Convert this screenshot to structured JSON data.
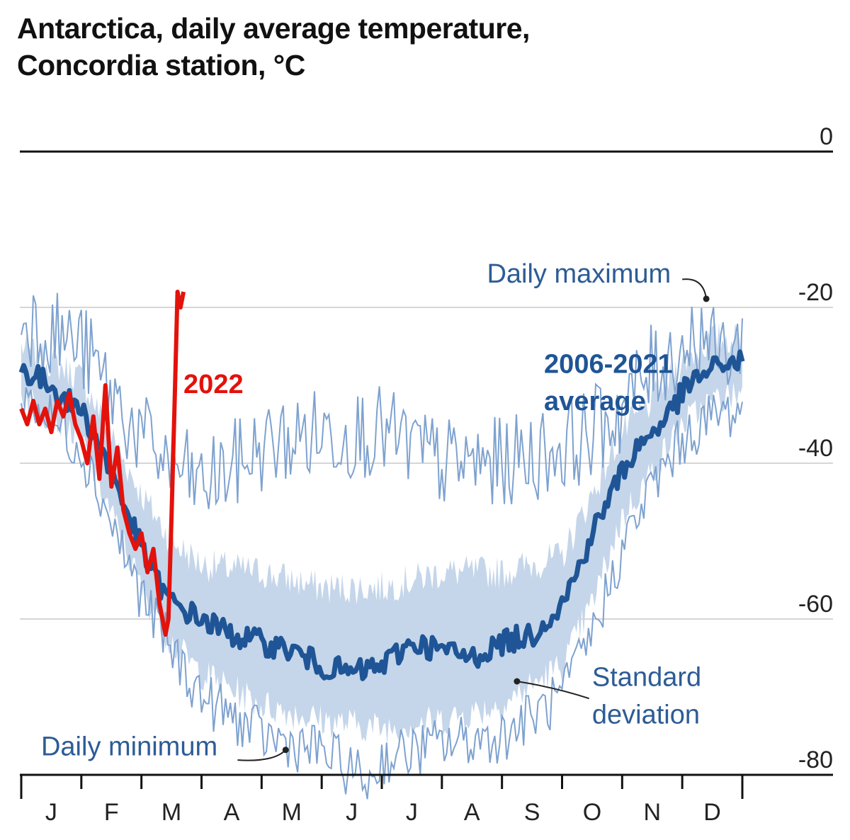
{
  "title_line1": "Antarctica, daily average temperature,",
  "title_line2": "Concordia station, °C",
  "colors": {
    "avg": "#1f5596",
    "band": "#c5d6ea",
    "minmax": "#7ea2cf",
    "y2022": "#e3120b",
    "annotation": "#2d5c96",
    "grid": "#d6d6d6",
    "axis": "#111111"
  },
  "chart_data": {
    "type": "line",
    "title": "Antarctica, daily average temperature, Concordia station, °C",
    "xlabel": "",
    "ylabel": "°C",
    "ylim": [
      -80,
      0
    ],
    "xlim": [
      0,
      12
    ],
    "y_ticks": [
      0,
      -20,
      -40,
      -60,
      -80
    ],
    "y_tick_labels": [
      "0",
      "-20",
      "-40",
      "-60",
      "-80"
    ],
    "months": [
      "J",
      "F",
      "M",
      "A",
      "M",
      "J",
      "J",
      "A",
      "S",
      "O",
      "N",
      "D"
    ],
    "grid": true,
    "legend": "annotations",
    "annotations": {
      "daily_max": "Daily maximum",
      "daily_min": "Daily minimum",
      "std_line1": "Standard",
      "std_line2": "deviation",
      "avg_line1": "2006-2021",
      "avg_line2": "average",
      "y2022": "2022"
    },
    "series": [
      {
        "name": "2006-2021 average",
        "x": [
          0,
          0.25,
          0.5,
          0.75,
          1.0,
          1.25,
          1.5,
          1.75,
          2.0,
          2.25,
          2.5,
          2.75,
          3.0,
          3.5,
          4.0,
          4.5,
          5.0,
          5.5,
          6.0,
          6.5,
          7.0,
          7.5,
          8.0,
          8.5,
          9.0,
          9.25,
          9.5,
          9.75,
          10.0,
          10.25,
          10.5,
          10.75,
          11.0,
          11.25,
          11.5,
          11.75,
          12.0
        ],
        "y": [
          -28,
          -29,
          -30,
          -32,
          -33,
          -37,
          -41,
          -46,
          -51,
          -55,
          -58,
          -59,
          -60,
          -62,
          -63,
          -64,
          -66,
          -67,
          -66,
          -63,
          -64,
          -65,
          -63,
          -62,
          -58,
          -54,
          -49,
          -45,
          -41,
          -38,
          -36,
          -34,
          -31,
          -29,
          -28,
          -27,
          -27
        ]
      },
      {
        "name": "Standard deviation upper",
        "x": [
          0,
          1.0,
          2.0,
          2.5,
          3.0,
          4.0,
          5.0,
          6.0,
          7.0,
          8.0,
          9.0,
          9.5,
          10.0,
          10.5,
          11.0,
          11.5,
          12.0
        ],
        "y": [
          -25,
          -29,
          -44,
          -50,
          -53,
          -54,
          -56,
          -56,
          -54,
          -54,
          -52,
          -44,
          -36,
          -32,
          -27,
          -24,
          -24
        ]
      },
      {
        "name": "Standard deviation lower",
        "x": [
          0,
          1.0,
          2.0,
          2.5,
          3.0,
          4.0,
          5.0,
          6.0,
          7.0,
          8.0,
          9.0,
          9.5,
          10.0,
          10.5,
          11.0,
          11.5,
          12.0
        ],
        "y": [
          -31,
          -37,
          -56,
          -63,
          -67,
          -71,
          -73,
          -74,
          -73,
          -71,
          -66,
          -58,
          -47,
          -41,
          -35,
          -32,
          -31
        ]
      },
      {
        "name": "Daily maximum",
        "x": [
          0,
          1.0,
          2.0,
          2.5,
          3.0,
          4.0,
          5.0,
          6.0,
          7.0,
          8.0,
          9.0,
          9.5,
          10.0,
          10.5,
          11.0,
          11.4,
          11.5,
          12.0
        ],
        "y": [
          -21,
          -25,
          -37,
          -40,
          -43,
          -38,
          -36,
          -36,
          -40,
          -40,
          -38,
          -36,
          -33,
          -28,
          -25,
          -23,
          -26,
          -25
        ]
      },
      {
        "name": "Daily minimum",
        "x": [
          0,
          1.0,
          2.0,
          2.5,
          3.0,
          4.0,
          5.0,
          5.8,
          6.0,
          7.0,
          8.0,
          9.0,
          9.5,
          10.0,
          10.5,
          11.0,
          11.5,
          12.0
        ],
        "y": [
          -31,
          -38,
          -57,
          -64,
          -70,
          -75,
          -77,
          -81,
          -78,
          -76,
          -75,
          -70,
          -62,
          -51,
          -43,
          -37,
          -34,
          -33
        ]
      },
      {
        "name": "2022",
        "x": [
          0,
          0.1,
          0.2,
          0.3,
          0.4,
          0.5,
          0.6,
          0.7,
          0.8,
          0.9,
          1.0,
          1.1,
          1.2,
          1.3,
          1.4,
          1.5,
          1.6,
          1.7,
          1.8,
          1.9,
          2.0,
          2.1,
          2.2,
          2.3,
          2.4,
          2.45,
          2.5,
          2.55,
          2.6,
          2.65,
          2.7
        ],
        "y": [
          -33,
          -35,
          -32,
          -35,
          -33,
          -36,
          -32,
          -34,
          -31,
          -35,
          -37,
          -40,
          -34,
          -42,
          -30,
          -43,
          -38,
          -46,
          -49,
          -51,
          -49,
          -54,
          -51,
          -58,
          -62,
          -60,
          -47,
          -33,
          -18,
          -20,
          -18
        ]
      }
    ]
  }
}
